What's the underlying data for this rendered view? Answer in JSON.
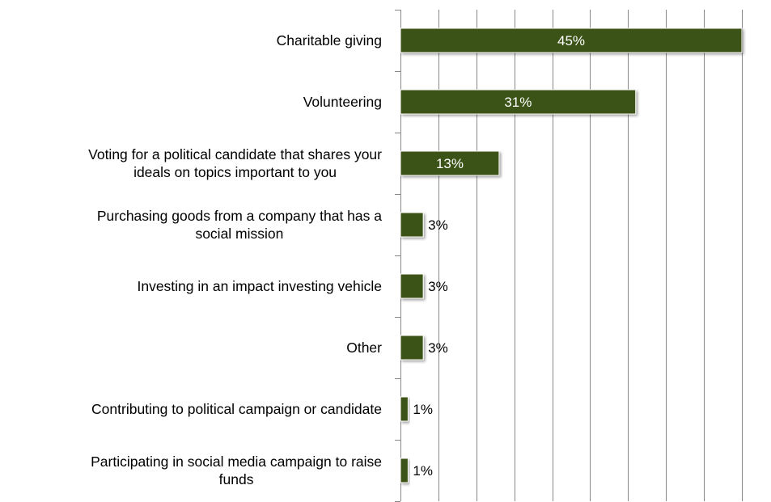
{
  "chart_data": {
    "type": "bar",
    "orientation": "horizontal",
    "categories": [
      "Charitable giving",
      "Volunteering",
      "Voting for a political candidate that shares your ideals on topics important to you",
      "Purchasing goods from a company that has a social mission",
      "Investing in an impact investing vehicle",
      "Other",
      "Contributing to political campaign or candidate",
      "Participating in social media campaign to raise funds"
    ],
    "category_label_lines": [
      [
        "Charitable giving"
      ],
      [
        "Volunteering"
      ],
      [
        "Voting for a political candidate that shares your",
        "ideals on topics important to you"
      ],
      [
        "Purchasing goods from a company that has a",
        "social mission"
      ],
      [
        "Investing in an impact investing vehicle"
      ],
      [
        "Other"
      ],
      [
        "Contributing to political campaign or candidate"
      ],
      [
        "Participating in social media campaign to raise",
        "funds"
      ]
    ],
    "values": [
      45,
      31,
      13,
      3,
      3,
      3,
      1,
      1
    ],
    "data_labels": [
      "45%",
      "31%",
      "13%",
      "3%",
      "3%",
      "3%",
      "1%",
      "1%"
    ],
    "value_unit": "%",
    "xlim": [
      0,
      45
    ],
    "x_gridline_step": 5,
    "grid": true,
    "title": "",
    "xlabel": "",
    "ylabel": "",
    "colors": {
      "bar": "#3b5313",
      "gridline": "#888888",
      "axis": "#888888",
      "label_inside": "#ffffff",
      "label_outside": "#000000"
    }
  }
}
